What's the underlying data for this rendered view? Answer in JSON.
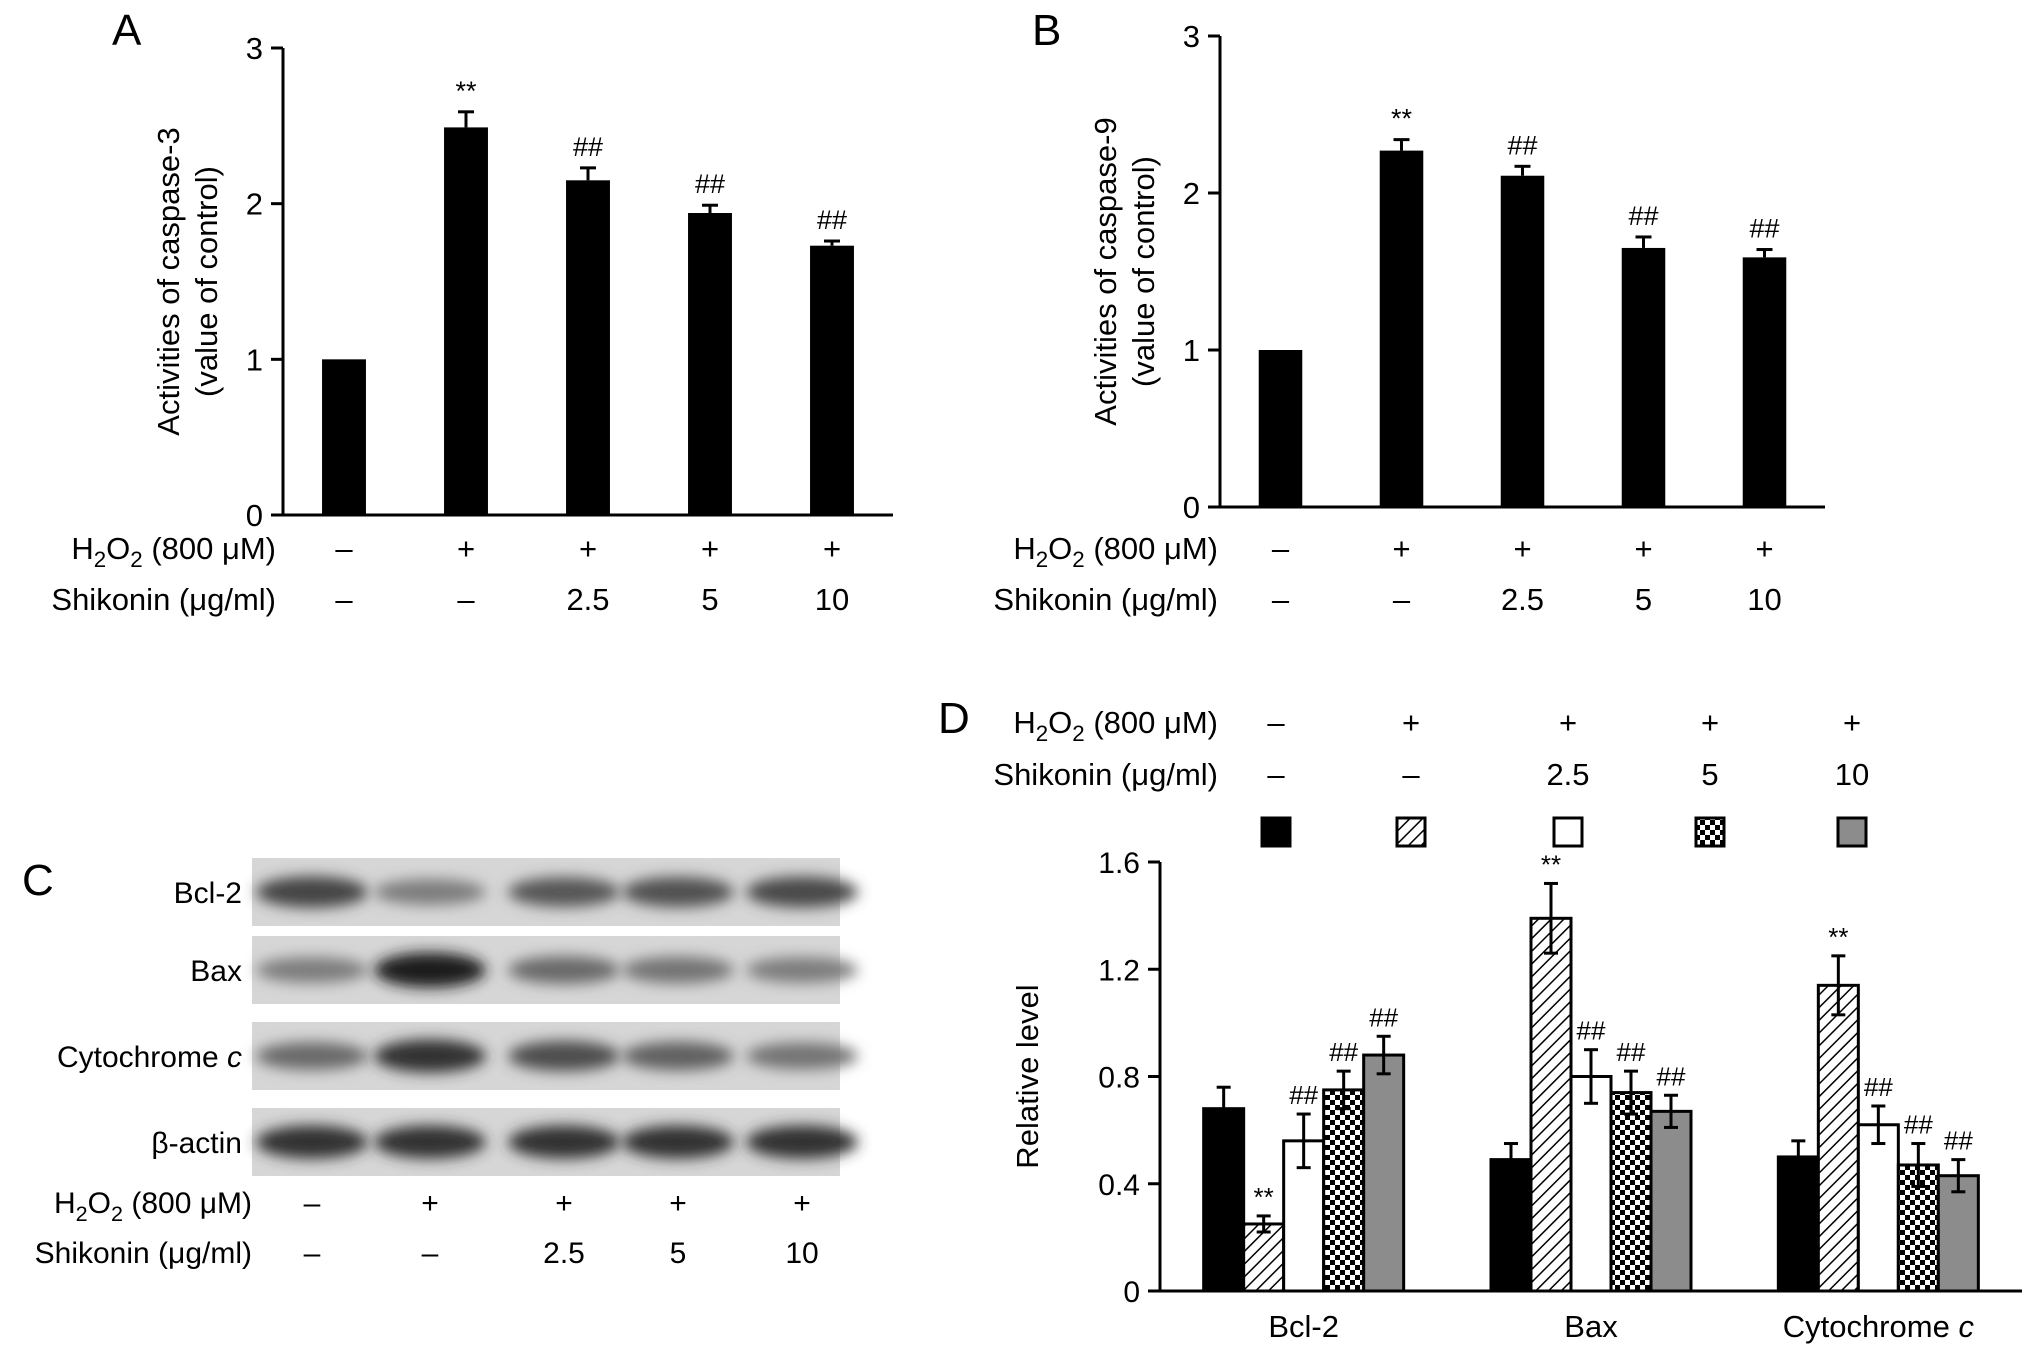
{
  "panels": {
    "a": "A",
    "b": "B",
    "c": "C",
    "d": "D"
  },
  "treatment_rows": {
    "h2o2_label": {
      "main": "H",
      "sub1": "2",
      "mid": "O",
      "sub2": "2",
      "rest": " (800 μM)"
    },
    "shikonin_label": "Shikonin (μg/ml)",
    "h2o2_signs": [
      "–",
      "+",
      "+",
      "+",
      "+"
    ],
    "shikonin_doses": [
      "–",
      "–",
      "2.5",
      "5",
      "10"
    ]
  },
  "chart_data": [
    {
      "panel": "A",
      "type": "bar",
      "ylabel": [
        "Activities of caspase-3",
        "(value of control)"
      ],
      "ylim": [
        0,
        3
      ],
      "yticks": [
        0,
        1,
        2,
        3
      ],
      "ytick_labels": [
        "0",
        "1",
        "2",
        "3"
      ],
      "categories": [
        "H2O2 – / Shikonin –",
        "H2O2 + / Shikonin –",
        "H2O2 + / Shikonin 2.5",
        "H2O2 + / Shikonin 5",
        "H2O2 + / Shikonin 10"
      ],
      "values": [
        1.0,
        2.49,
        2.15,
        1.94,
        1.73
      ],
      "errors": [
        0.01,
        0.1,
        0.08,
        0.05,
        0.03
      ],
      "annotations": [
        "",
        "**",
        "##",
        "##",
        "##"
      ],
      "bar_color": "#000000"
    },
    {
      "panel": "B",
      "type": "bar",
      "ylabel": [
        "Activities of caspase-9",
        "(value of control)"
      ],
      "ylim": [
        0,
        3
      ],
      "yticks": [
        0,
        1,
        2,
        3
      ],
      "ytick_labels": [
        "0",
        "1",
        "2",
        "3"
      ],
      "categories": [
        "H2O2 – / Shikonin –",
        "H2O2 + / Shikonin –",
        "H2O2 + / Shikonin 2.5",
        "H2O2 + / Shikonin 5",
        "H2O2 + / Shikonin 10"
      ],
      "values": [
        1.0,
        2.27,
        2.11,
        1.65,
        1.59
      ],
      "errors": [
        0.01,
        0.07,
        0.06,
        0.07,
        0.05
      ],
      "annotations": [
        "",
        "**",
        "##",
        "##",
        "##"
      ],
      "bar_color": "#000000"
    },
    {
      "panel": "D",
      "type": "bar",
      "ylabel": "Relative level",
      "ylim": [
        0,
        1.6
      ],
      "yticks": [
        0,
        0.4,
        0.8,
        1.2,
        1.6
      ],
      "ytick_labels": [
        "0",
        "0.4",
        "0.8",
        "1.2",
        "1.6"
      ],
      "categories": [
        "Bcl-2",
        "Bax",
        "Cytochrome c"
      ],
      "category_parts": [
        [
          "Bcl-2",
          ""
        ],
        [
          "Bax",
          ""
        ],
        [
          "Cytochrome ",
          "c"
        ]
      ],
      "series": [
        {
          "values": [
            0.68,
            0.49,
            0.5
          ],
          "errors": [
            0.08,
            0.06,
            0.06
          ],
          "fill": "solid-black",
          "annotations": [
            "",
            "",
            ""
          ]
        },
        {
          "values": [
            0.25,
            1.39,
            1.14
          ],
          "errors": [
            0.03,
            0.13,
            0.11
          ],
          "fill": "diagonal-hatch",
          "annotations": [
            "**",
            "**",
            "**"
          ]
        },
        {
          "values": [
            0.56,
            0.8,
            0.62
          ],
          "errors": [
            0.1,
            0.1,
            0.07
          ],
          "fill": "white",
          "annotations": [
            "##",
            "##",
            "##"
          ]
        },
        {
          "values": [
            0.75,
            0.74,
            0.47
          ],
          "errors": [
            0.07,
            0.08,
            0.08
          ],
          "fill": "checkerboard",
          "annotations": [
            "##",
            "##",
            "##"
          ]
        },
        {
          "values": [
            0.88,
            0.67,
            0.43
          ],
          "errors": [
            0.07,
            0.06,
            0.06
          ],
          "fill": "gray",
          "annotations": [
            "##",
            "##",
            "##"
          ]
        }
      ],
      "legend_placement": "top",
      "colors": {
        "black": "#000000",
        "gray": "#8c8c8c",
        "white": "#ffffff"
      }
    }
  ],
  "western_blot": {
    "proteins": [
      {
        "name": "Bcl-2",
        "italic": ""
      },
      {
        "name": "Bax",
        "italic": ""
      },
      {
        "name": "Cytochrome ",
        "italic": "c"
      },
      {
        "name": "β-actin",
        "italic": ""
      }
    ],
    "band_intensity": [
      [
        0.75,
        0.45,
        0.65,
        0.68,
        0.72
      ],
      [
        0.45,
        0.95,
        0.55,
        0.5,
        0.45
      ],
      [
        0.55,
        0.85,
        0.7,
        0.6,
        0.5
      ],
      [
        0.85,
        0.85,
        0.85,
        0.85,
        0.85
      ]
    ]
  }
}
